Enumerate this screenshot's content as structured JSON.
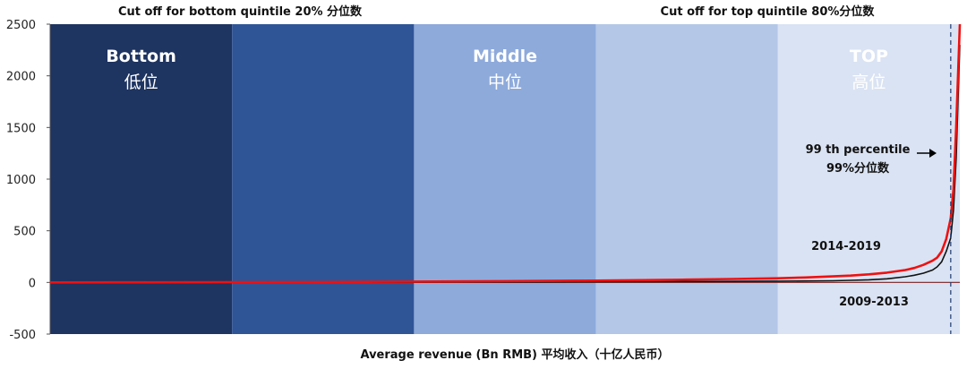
{
  "chart_data": {
    "type": "line",
    "title": "",
    "xlabel": "Average revenue (Bn RMB) 平均收入（十亿人民币）",
    "ylabel": "",
    "ylim": [
      -500,
      2500
    ],
    "yticks": [
      -500,
      0,
      500,
      1000,
      1500,
      2000,
      2500
    ],
    "grid": false,
    "x_axis": "percentile (0–100), unlabeled",
    "bands": [
      {
        "from": 0,
        "to": 20,
        "color": "#1e3461",
        "title": "Bottom",
        "subtitle": "低位"
      },
      {
        "from": 20,
        "to": 40,
        "color": "#2f5597",
        "title": "",
        "subtitle": ""
      },
      {
        "from": 40,
        "to": 60,
        "color": "#8eaadb",
        "title": "Middle",
        "subtitle": "中位"
      },
      {
        "from": 60,
        "to": 80,
        "color": "#b4c7e7",
        "title": "",
        "subtitle": ""
      },
      {
        "from": 80,
        "to": 100,
        "color": "#dae3f3",
        "title": "TOP",
        "subtitle": "高位"
      }
    ],
    "top_annotations": {
      "bottom_cutoff": "Cut off for bottom quintile 20% 分位数",
      "top_cutoff": "Cut off for top quintile  80%分位数"
    },
    "percentile_line": {
      "x": 99,
      "label_line1": "99 th percentile",
      "label_line2": "99%分位数"
    },
    "series": [
      {
        "name": "2014-2019",
        "color": "#ee1111",
        "x": [
          0,
          10,
          20,
          30,
          40,
          50,
          60,
          65,
          70,
          75,
          80,
          83,
          86,
          88,
          90,
          92,
          94,
          95,
          96,
          97,
          97.5,
          98,
          98.5,
          99,
          99.3,
          99.6,
          100
        ],
        "values": [
          0,
          1,
          2,
          4,
          8,
          12,
          18,
          22,
          27,
          33,
          40,
          48,
          58,
          66,
          78,
          95,
          120,
          140,
          170,
          210,
          240,
          300,
          420,
          620,
          900,
          1500,
          2500
        ]
      },
      {
        "name": "2009-2013",
        "color": "#111111",
        "x": [
          0,
          10,
          20,
          30,
          40,
          50,
          60,
          65,
          70,
          75,
          80,
          83,
          86,
          88,
          90,
          92,
          94,
          95,
          96,
          97,
          97.5,
          98,
          98.5,
          99,
          99.3,
          99.6,
          100
        ],
        "values": [
          0,
          0,
          0,
          1,
          2,
          4,
          6,
          7,
          9,
          10,
          12,
          14,
          16,
          20,
          25,
          35,
          55,
          70,
          90,
          120,
          150,
          200,
          300,
          430,
          700,
          1200,
          2300
        ]
      }
    ],
    "series_labels": [
      {
        "name": "2014-2019",
        "color": "#ee1111"
      },
      {
        "name": "2009-2013",
        "color": "#111111"
      }
    ]
  }
}
